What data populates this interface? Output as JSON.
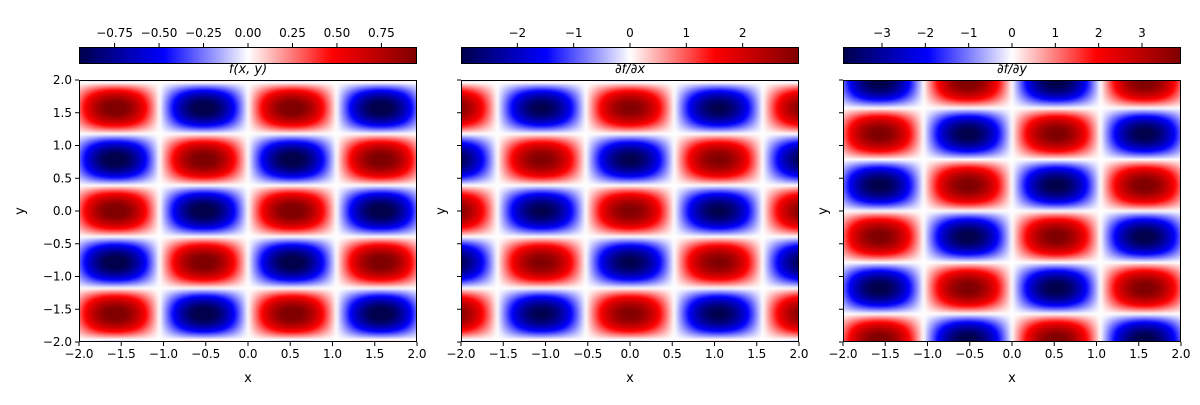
{
  "chart_data": [
    {
      "type": "heatmap",
      "title": "f(x, y)",
      "function": "sin(3x) * cos(4y)",
      "xlabel": "x",
      "ylabel": "y",
      "xlim": [
        -2,
        2
      ],
      "ylim": [
        -2,
        2
      ],
      "xticks": [
        -2.0,
        -1.5,
        -1.0,
        -0.5,
        0.0,
        0.5,
        1.0,
        1.5,
        2.0
      ],
      "yticks": [
        -2.0,
        -1.5,
        -1.0,
        -0.5,
        0.0,
        0.5,
        1.0,
        1.5,
        2.0
      ],
      "colormap": "seismic",
      "colorbar": {
        "placement": "top",
        "range": [
          -0.95,
          0.95
        ],
        "ticks": [
          -0.75,
          -0.5,
          -0.25,
          0.0,
          0.25,
          0.5,
          0.75
        ],
        "tick_labels": [
          "−0.75",
          "−0.50",
          "−0.25",
          "0.00",
          "0.25",
          "0.50",
          "0.75"
        ]
      }
    },
    {
      "type": "heatmap",
      "title": "∂f/∂x",
      "function": "3 cos(3x) * cos(4y)",
      "xlabel": "x",
      "ylabel": "y",
      "xlim": [
        -2,
        2
      ],
      "ylim": [
        -2,
        2
      ],
      "xticks": [
        -2.0,
        -1.5,
        -1.0,
        -0.5,
        0.0,
        0.5,
        1.0,
        1.5,
        2.0
      ],
      "yticks": [
        -2.0,
        -1.5,
        -1.0,
        -0.5,
        0.0,
        0.5,
        1.0,
        1.5,
        2.0
      ],
      "colormap": "seismic",
      "colorbar": {
        "placement": "top",
        "range": [
          -3,
          3
        ],
        "ticks": [
          -2,
          -1,
          0,
          1,
          2
        ],
        "tick_labels": [
          "−2",
          "−1",
          "0",
          "1",
          "2"
        ]
      }
    },
    {
      "type": "heatmap",
      "title": "∂f/∂y",
      "function": "-4 sin(3x) * sin(4y)",
      "xlabel": "x",
      "ylabel": "y",
      "xlim": [
        -2,
        2
      ],
      "ylim": [
        -2,
        2
      ],
      "xticks": [
        -2.0,
        -1.5,
        -1.0,
        -0.5,
        0.0,
        0.5,
        1.0,
        1.5,
        2.0
      ],
      "yticks": [
        -2.0,
        -1.5,
        -1.0,
        -0.5,
        0.0,
        0.5,
        1.0,
        1.5,
        2.0
      ],
      "colormap": "seismic",
      "colorbar": {
        "placement": "top",
        "range": [
          -3.9,
          3.9
        ],
        "ticks": [
          -3,
          -2,
          -1,
          0,
          1,
          2,
          3
        ],
        "tick_labels": [
          "−3",
          "−2",
          "−1",
          "0",
          "1",
          "2",
          "3"
        ]
      }
    }
  ],
  "tick_label_format": {
    "x": [
      "−2.0",
      "−1.5",
      "−1.0",
      "−0.5",
      "0.0",
      "0.5",
      "1.0",
      "1.5",
      "2.0"
    ],
    "y": [
      "−2.0",
      "−1.5",
      "−1.0",
      "−0.5",
      "0.0",
      "0.5",
      "1.0",
      "1.5",
      "2.0"
    ]
  },
  "y_tick_labels_shown_on": [
    0,
    1,
    2
  ]
}
